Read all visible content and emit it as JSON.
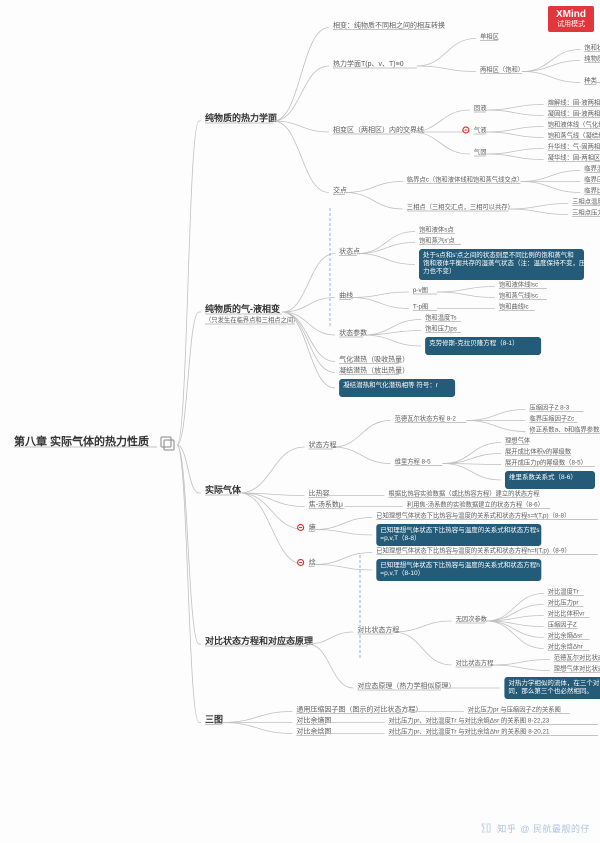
{
  "colors": {
    "bg": "#fdfdfd",
    "edge": "#c0c0c0",
    "under": "#b0b0b0",
    "pill": "#245b78",
    "accent": "#e2353c",
    "dash": "#88aadd"
  },
  "badge": {
    "brand": "XMind",
    "sub": "试用模式"
  },
  "watermark": {
    "site": "知乎",
    "user": "@ 民航最靓的仔"
  },
  "root": "第八章 实际气体的热力性质",
  "branches": [
    {
      "label": "纯物质的热力学面",
      "children": [
        {
          "label": "相变：纯物质不同相之间的相互转换"
        },
        {
          "label": "热力学面T(p、v、T)≡0",
          "children": [
            {
              "label": "单相区"
            },
            {
              "label": "两相区（饱和）",
              "children": [
                {
                  "label": "饱和状态：两种不同相平衡共存"
                },
                {
                  "label": "纯物质具有相同的压力和温度"
                },
                {
                  "label": "种类",
                  "children": [
                    {
                      "label": "固-液"
                    },
                    {
                      "label": "气-液",
                      "mark": "circle"
                    },
                    {
                      "label": "气-固"
                    }
                  ]
                }
              ]
            }
          ]
        },
        {
          "label": "相变区（两相区）内的交界线",
          "children": [
            {
              "label": "固液",
              "children": [
                {
                  "label": "熔解线：固-液两相区与固相区的交界线"
                },
                {
                  "label": "凝固线：固-液两相区与液相区的交界线"
                }
              ]
            },
            {
              "label": "气液",
              "mark": "circle",
              "children": [
                {
                  "label": "饱和液体线（气化线）：气-液两相区与液相区的交界线"
                },
                {
                  "label": "饱和蒸气线（凝结线）：气-液两相区与气相区的交界线"
                }
              ]
            },
            {
              "label": "气固",
              "children": [
                {
                  "label": "升华线：气-固两相区与固相区的交界线"
                },
                {
                  "label": "凝华线：固-两相区与气相区的交界线"
                }
              ]
            }
          ]
        },
        {
          "label": "交点",
          "children": [
            {
              "label": "临界点c（饱和液体线和饱和蒸气线交点）",
              "children": [
                {
                  "label": "临界温度Tc"
                },
                {
                  "label": "临界压力pc"
                },
                {
                  "label": "临界比体积vc"
                }
              ]
            },
            {
              "label": "三相点（三相交汇点，三相可以共存）",
              "children": [
                {
                  "label": "三相点温度Tt"
                },
                {
                  "label": "三相点压力pt"
                }
              ]
            }
          ]
        }
      ]
    },
    {
      "label": "纯物质的气-液相变",
      "sublabel": "（只发生在临界点和三相点之间）",
      "children": [
        {
          "label": "状态点",
          "children": [
            {
              "label": "饱和液体s点"
            },
            {
              "label": "饱和蒸汽s'点"
            },
            {
              "pill": "处于s点和s'点之间的状态则是不同比例的饱和蒸气和饱和液体平衡共存的湿蒸气状态（注：温度保持不变，压力也不变）"
            }
          ]
        },
        {
          "label": "曲线",
          "children": [
            {
              "label": "p-v图",
              "children": [
                {
                  "label": "饱和液体线lsc"
                },
                {
                  "label": "饱和蒸气线lsc"
                }
              ]
            },
            {
              "label": "T-p图",
              "children": [
                {
                  "label": "饱和曲线lc"
                }
              ]
            }
          ]
        },
        {
          "label": "状态参数",
          "children": [
            {
              "label": "饱和温度Ts"
            },
            {
              "label": "饱和压力ps"
            },
            {
              "pill": "克劳修斯-克拉贝隆方程（8-1）"
            }
          ]
        },
        {
          "label": "气化潜热（吸收热量）"
        },
        {
          "label": "凝结潜热（放出热量）"
        },
        {
          "pill": "凝结潜热和气化潜热相等 符号：r"
        }
      ]
    },
    {
      "label": "实际气体",
      "children": [
        {
          "label": "状态方程",
          "children": [
            {
              "label": "范德瓦尔状态方程 8-2",
              "children": [
                {
                  "label": "压缩因子Z 8-3"
                },
                {
                  "label": "临界压缩因子Zc"
                },
                {
                  "label": "修正系数a、b和临界参数间关系 8-4"
                }
              ]
            },
            {
              "label": "维里方程 8-5",
              "children": [
                {
                  "label": "理想气体"
                },
                {
                  "label": "展开成比体积v的幂级数"
                },
                {
                  "label": "展开成压力p的幂级数（8-5）"
                },
                {
                  "pill": "维里系数关系式（8-6）"
                }
              ]
            }
          ]
        },
        {
          "label": "比热容",
          "children": [
            {
              "label": "根据比热容实验数据（或比热容方程）建立的状态方程"
            }
          ]
        },
        {
          "label": "焦-汤系数μ",
          "children": [
            {
              "label": "利用焦-汤系数的实验数据建立的状态方程（8-6）"
            }
          ]
        },
        {
          "label": "熵",
          "mark": "circle",
          "children": [
            {
              "label": "已知理想气体状态下比热容与温度的关系式和状态方程s=f(T,p)（8-8）"
            },
            {
              "pill": "已知理想气体状态下比热容与温度的关系式和状态方程s=p,v,T（8-8）"
            }
          ]
        },
        {
          "label": "焓",
          "mark": "circle",
          "children": [
            {
              "label": "已知理想气体状态下比热容与温度的关系式和状态方程h=f(T,p)（8-9）"
            },
            {
              "pill": "已知理想气体状态下比热容与温度的关系式和状态方程h=p,v,T（8-10）"
            }
          ]
        }
      ]
    },
    {
      "label": "对比状态方程和对应态原理",
      "children": [
        {
          "label": "对比状态方程",
          "children": [
            {
              "label": "无因次参数",
              "children": [
                {
                  "label": "对比温度Tr"
                },
                {
                  "label": "对比压力pr"
                },
                {
                  "label": "对比比体积vr"
                },
                {
                  "label": "压缩因子Z"
                },
                {
                  "label": "对比余熵Δsr"
                },
                {
                  "label": "对比余焓Δhr"
                }
              ]
            },
            {
              "label": "对比状态方程",
              "children": [
                {
                  "label": "范德瓦尔对比状态方程（8-9,12）"
                },
                {
                  "label": "理想气体对比状态方程"
                }
              ]
            }
          ]
        },
        {
          "label": "对应态原理（热力学相似原理）",
          "children": [
            {
              "pill": "对热力学相似的流体，在三个对比参数中，如果有两个相同，那么第三个也必然相同。"
            }
          ]
        }
      ]
    },
    {
      "label": "三图",
      "children": [
        {
          "label": "通用压缩因子图（图示的对比状态方程）",
          "children": [
            {
              "label": "对比压力pr 与压缩因子Z的关系图"
            }
          ]
        },
        {
          "label": "对比余熵图",
          "children": [
            {
              "label": "对比压力pr、对比温度Tr 与对比余熵Δsr 的关系图 8-22,23"
            }
          ]
        },
        {
          "label": "对比余焓图",
          "children": [
            {
              "label": "对比压力pr、对比温度Tr 与对比余焓Δhr 的关系图 8-20,21"
            }
          ]
        }
      ]
    }
  ]
}
